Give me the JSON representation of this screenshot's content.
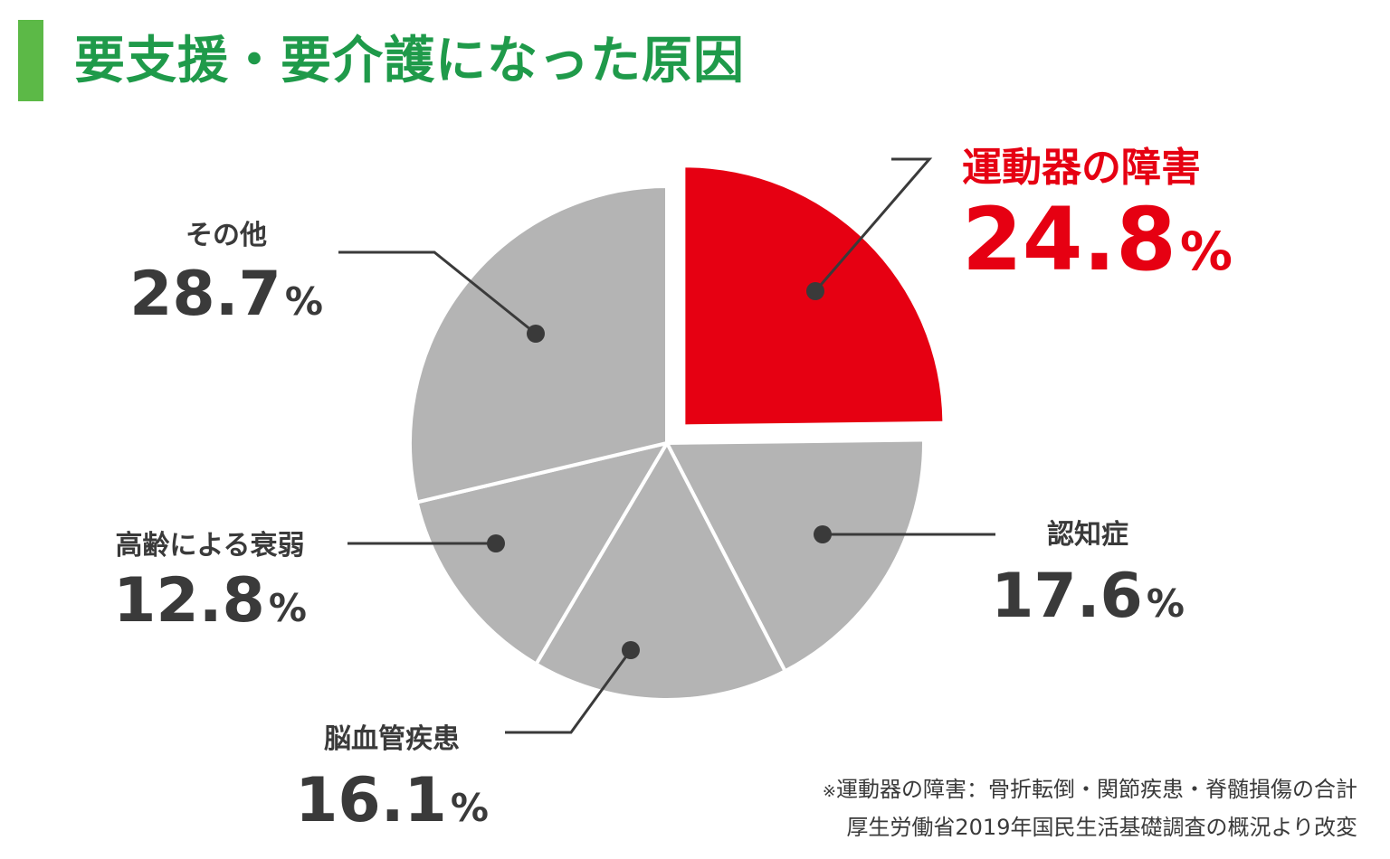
{
  "title": "要支援・要介護になった原因",
  "accent_colors": {
    "title_bar": "#5cb947",
    "title_text": "#1f9a4a",
    "highlight": "#e60012",
    "slice_default": "#b4b4b4",
    "label_text": "#3a3a3a"
  },
  "chart_data": {
    "type": "pie",
    "title": "要支援・要介護になった原因",
    "unit": "%",
    "start": "12 o'clock",
    "direction": "clockwise",
    "highlighted_slice": "運動器の障害",
    "slices": [
      {
        "label": "運動器の障害",
        "value": 24.8,
        "value_text": "24.8",
        "color": "#e60012",
        "exploded": true
      },
      {
        "label": "認知症",
        "value": 17.6,
        "value_text": "17.6",
        "color": "#b4b4b4"
      },
      {
        "label": "脳血管疾患",
        "value": 16.1,
        "value_text": "16.1",
        "color": "#b4b4b4"
      },
      {
        "label": "高齢による衰弱",
        "value": 12.8,
        "value_text": "12.8",
        "color": "#b4b4b4"
      },
      {
        "label": "その他",
        "value": 28.7,
        "value_text": "28.7",
        "color": "#b4b4b4"
      }
    ]
  },
  "footnotes": {
    "line1_mark": "※",
    "line1": "運動器の障害：骨折転倒・関節疾患・脊髄損傷の合計",
    "line2": "厚生労働省2019年国民生活基礎調査の概況より改変"
  }
}
